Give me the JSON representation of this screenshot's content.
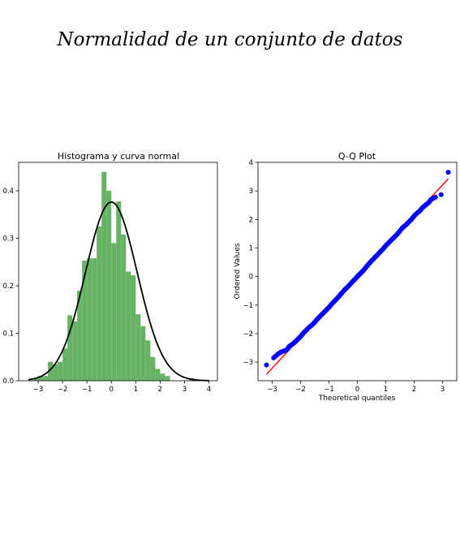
{
  "page_title": "Normalidad de un conjunto de datos",
  "chart_data": [
    {
      "type": "bar",
      "title": "Histograma y curva normal",
      "xlabel": "",
      "ylabel": "",
      "xlim": [
        -3.8,
        4.35
      ],
      "ylim": [
        0,
        0.46
      ],
      "xticks": [
        -3,
        -2,
        -1,
        0,
        1,
        2,
        3,
        4
      ],
      "yticks": [
        0.0,
        0.1,
        0.2,
        0.3,
        0.4
      ],
      "tick_labels_x": [
        "−3",
        "−2",
        "−1",
        "0",
        "1",
        "2",
        "3",
        "4"
      ],
      "tick_labels_y": [
        "0.0",
        "0.1",
        "0.2",
        "0.3",
        "0.4"
      ],
      "grid": false,
      "bar_color": "#66b366",
      "curve_color": "#000000",
      "bin_width": 0.2,
      "bins": [
        {
          "x0": -3.2,
          "value": 0.005
        },
        {
          "x0": -3.0,
          "value": 0.01
        },
        {
          "x0": -2.8,
          "value": 0.01
        },
        {
          "x0": -2.6,
          "value": 0.04
        },
        {
          "x0": -2.4,
          "value": 0.035
        },
        {
          "x0": -2.2,
          "value": 0.04
        },
        {
          "x0": -2.0,
          "value": 0.068
        },
        {
          "x0": -1.8,
          "value": 0.138
        },
        {
          "x0": -1.6,
          "value": 0.125
        },
        {
          "x0": -1.4,
          "value": 0.19
        },
        {
          "x0": -1.2,
          "value": 0.253
        },
        {
          "x0": -1.0,
          "value": 0.258
        },
        {
          "x0": -0.8,
          "value": 0.258
        },
        {
          "x0": -0.6,
          "value": 0.325
        },
        {
          "x0": -0.4,
          "value": 0.44
        },
        {
          "x0": -0.2,
          "value": 0.4
        },
        {
          "x0": 0.0,
          "value": 0.29
        },
        {
          "x0": 0.2,
          "value": 0.378
        },
        {
          "x0": 0.4,
          "value": 0.308
        },
        {
          "x0": 0.6,
          "value": 0.23
        },
        {
          "x0": 0.8,
          "value": 0.222
        },
        {
          "x0": 1.0,
          "value": 0.14
        },
        {
          "x0": 1.2,
          "value": 0.115
        },
        {
          "x0": 1.4,
          "value": 0.085
        },
        {
          "x0": 1.6,
          "value": 0.05
        },
        {
          "x0": 1.8,
          "value": 0.025
        },
        {
          "x0": 2.0,
          "value": 0.015
        },
        {
          "x0": 2.2,
          "value": 0.01
        },
        {
          "x0": 3.2,
          "value": 0.005
        }
      ],
      "curve": {
        "mean": 0.0,
        "std": 1.06,
        "x_range": [
          -3.4,
          4.0
        ]
      }
    },
    {
      "type": "scatter",
      "title": "Q-Q Plot",
      "xlabel": "Theoretical quantiles",
      "ylabel": "Ordered Values",
      "xlim": [
        -3.5,
        3.5
      ],
      "ylim": [
        -3.65,
        4.0
      ],
      "xticks": [
        -3,
        -2,
        -1,
        0,
        1,
        2,
        3
      ],
      "yticks": [
        -3,
        -2,
        -1,
        0,
        1,
        2,
        3,
        4
      ],
      "tick_labels_x": [
        "−3",
        "−2",
        "−1",
        "0",
        "1",
        "2",
        "3"
      ],
      "tick_labels_y": [
        "−3",
        "−2",
        "−1",
        "0",
        "1",
        "2",
        "3",
        "4"
      ],
      "grid": false,
      "point_color": "#0000ff",
      "line_color": "#ff0000",
      "fit_line": {
        "slope": 1.07,
        "intercept": 0.0,
        "x_range": [
          -3.2,
          3.2
        ]
      },
      "points": [
        {
          "x": -3.2,
          "y": -3.1
        },
        {
          "x": -2.95,
          "y": -2.85
        },
        {
          "x": -2.8,
          "y": -2.72
        },
        {
          "x": -2.7,
          "y": -2.65
        },
        {
          "x": -2.62,
          "y": -2.62
        },
        {
          "x": -2.5,
          "y": -2.58
        },
        {
          "x": -2.4,
          "y": -2.45
        },
        {
          "x": -2.3,
          "y": -2.38
        },
        {
          "x": -2.2,
          "y": -2.3
        },
        {
          "x": -2.1,
          "y": -2.2
        },
        {
          "x": -2.0,
          "y": -2.1
        },
        {
          "x": -1.9,
          "y": -1.98
        },
        {
          "x": -1.8,
          "y": -1.88
        },
        {
          "x": -1.7,
          "y": -1.78
        },
        {
          "x": -1.6,
          "y": -1.7
        },
        {
          "x": -1.5,
          "y": -1.6
        },
        {
          "x": -1.4,
          "y": -1.48
        },
        {
          "x": -1.3,
          "y": -1.38
        },
        {
          "x": -1.2,
          "y": -1.28
        },
        {
          "x": -1.1,
          "y": -1.18
        },
        {
          "x": -1.0,
          "y": -1.08
        },
        {
          "x": -0.9,
          "y": -0.96
        },
        {
          "x": -0.8,
          "y": -0.86
        },
        {
          "x": -0.7,
          "y": -0.75
        },
        {
          "x": -0.6,
          "y": -0.64
        },
        {
          "x": -0.5,
          "y": -0.52
        },
        {
          "x": -0.4,
          "y": -0.42
        },
        {
          "x": -0.3,
          "y": -0.32
        },
        {
          "x": -0.2,
          "y": -0.21
        },
        {
          "x": -0.1,
          "y": -0.11
        },
        {
          "x": 0.0,
          "y": 0.0
        },
        {
          "x": 0.1,
          "y": 0.1
        },
        {
          "x": 0.2,
          "y": 0.2
        },
        {
          "x": 0.3,
          "y": 0.32
        },
        {
          "x": 0.4,
          "y": 0.44
        },
        {
          "x": 0.5,
          "y": 0.55
        },
        {
          "x": 0.6,
          "y": 0.65
        },
        {
          "x": 0.7,
          "y": 0.75
        },
        {
          "x": 0.8,
          "y": 0.86
        },
        {
          "x": 0.9,
          "y": 0.96
        },
        {
          "x": 1.0,
          "y": 1.08
        },
        {
          "x": 1.1,
          "y": 1.18
        },
        {
          "x": 1.2,
          "y": 1.28
        },
        {
          "x": 1.3,
          "y": 1.38
        },
        {
          "x": 1.4,
          "y": 1.48
        },
        {
          "x": 1.5,
          "y": 1.6
        },
        {
          "x": 1.6,
          "y": 1.72
        },
        {
          "x": 1.7,
          "y": 1.8
        },
        {
          "x": 1.8,
          "y": 1.9
        },
        {
          "x": 1.9,
          "y": 2.0
        },
        {
          "x": 2.0,
          "y": 2.12
        },
        {
          "x": 2.1,
          "y": 2.22
        },
        {
          "x": 2.2,
          "y": 2.3
        },
        {
          "x": 2.3,
          "y": 2.42
        },
        {
          "x": 2.4,
          "y": 2.5
        },
        {
          "x": 2.5,
          "y": 2.58
        },
        {
          "x": 2.6,
          "y": 2.7
        },
        {
          "x": 2.75,
          "y": 2.78
        },
        {
          "x": 2.95,
          "y": 2.87
        },
        {
          "x": 3.2,
          "y": 3.65
        }
      ]
    }
  ]
}
